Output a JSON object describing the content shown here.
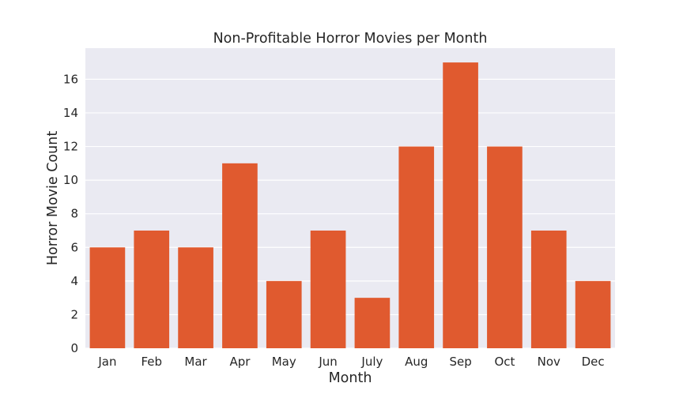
{
  "chart_data": {
    "type": "bar",
    "title": "Non-Profitable Horror Movies per Month",
    "xlabel": "Month",
    "ylabel": "Horror Movie Count",
    "categories": [
      "Jan",
      "Feb",
      "Mar",
      "Apr",
      "May",
      "Jun",
      "July",
      "Aug",
      "Sep",
      "Oct",
      "Nov",
      "Dec"
    ],
    "values": [
      6,
      7,
      6,
      11,
      4,
      7,
      3,
      12,
      17,
      12,
      7,
      4
    ],
    "ylim": [
      0,
      17.85
    ],
    "yticks": [
      0,
      2,
      4,
      6,
      8,
      10,
      12,
      14,
      16
    ],
    "grid": true,
    "legend": "none",
    "colors": {
      "bar": "#e05a2f",
      "plot_background": "#eaeaf2",
      "grid": "#ffffff",
      "text": "#262626"
    }
  }
}
